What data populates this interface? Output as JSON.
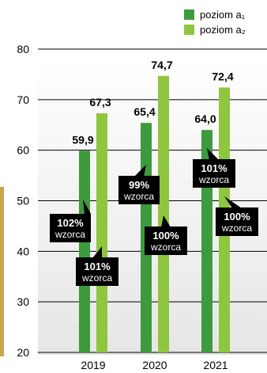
{
  "chart_data": {
    "type": "bar",
    "categories": [
      "2019",
      "2020",
      "2021"
    ],
    "series": [
      {
        "name": "poziom a₁",
        "values": [
          59.9,
          65.4,
          64.0
        ],
        "labels": [
          "59,9",
          "65,4",
          "64,0"
        ],
        "color": "#3d9a3d"
      },
      {
        "name": "poziom a₂",
        "values": [
          67.3,
          74.7,
          72.4
        ],
        "labels": [
          "67,3",
          "74,7",
          "72,4"
        ],
        "color": "#8ec63f"
      }
    ],
    "ylim": [
      20,
      80
    ],
    "yticks": [
      20,
      30,
      40,
      50,
      60,
      70,
      80
    ],
    "grid": true,
    "legend_position": "top-right",
    "annotations": [
      {
        "series": 0,
        "category": 0,
        "pct": "102%",
        "sub": "wzorca"
      },
      {
        "series": 1,
        "category": 0,
        "pct": "101%",
        "sub": "wzorca"
      },
      {
        "series": 0,
        "category": 1,
        "pct": "99%",
        "sub": "wzorca"
      },
      {
        "series": 1,
        "category": 1,
        "pct": "100%",
        "sub": "wzorca"
      },
      {
        "series": 0,
        "category": 2,
        "pct": "101%",
        "sub": "wzorca"
      },
      {
        "series": 1,
        "category": 2,
        "pct": "100%",
        "sub": "wzorca"
      }
    ],
    "colors": {
      "background_band": "#ffffff",
      "grid": "#000000",
      "callout": "#000000",
      "side_bar": "#c9a84a"
    }
  }
}
